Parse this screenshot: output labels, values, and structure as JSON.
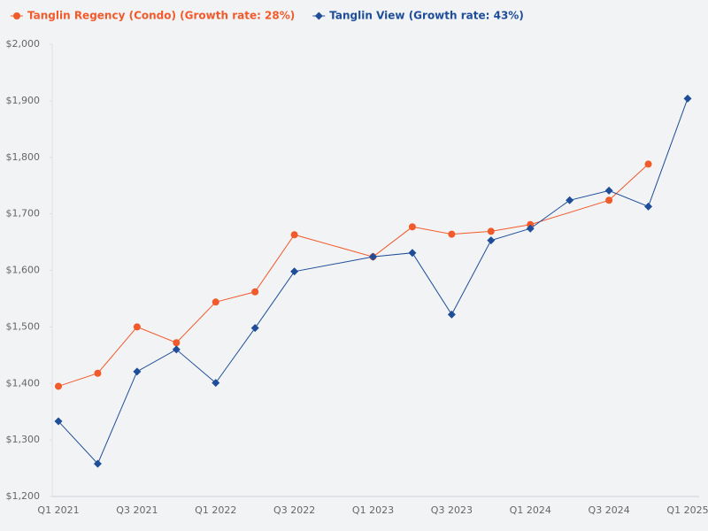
{
  "chart_data": {
    "type": "line",
    "categories": [
      "Q1 2021",
      null,
      "Q3 2021",
      null,
      "Q1 2022",
      null,
      "Q3 2022",
      null,
      "Q1 2023",
      null,
      "Q3 2023",
      null,
      "Q1 2024",
      null,
      "Q3 2024",
      null,
      "Q1 2025"
    ],
    "series": [
      {
        "name": "Tanglin Regency (Condo) (Growth rate: 28%)",
        "color": "#f15a2b",
        "marker": "circle",
        "values": [
          1395,
          1418,
          1500,
          1472,
          1544,
          1562,
          1663,
          null,
          1624,
          1677,
          1664,
          1669,
          1681,
          null,
          1724,
          1788,
          null
        ]
      },
      {
        "name": "Tanglin View (Growth rate: 43%)",
        "color": "#1f4e99",
        "marker": "diamond",
        "values": [
          1333,
          1258,
          1421,
          1460,
          1401,
          1498,
          1598,
          null,
          1624,
          1631,
          1522,
          1653,
          1674,
          1724,
          1741,
          1713,
          1904
        ]
      }
    ],
    "connect_gaps": true,
    "ylim": [
      1200,
      2000
    ],
    "yticks": [
      {
        "value": 1200,
        "label": "$1,200"
      },
      {
        "value": 1300,
        "label": "$1,300"
      },
      {
        "value": 1400,
        "label": "$1,400"
      },
      {
        "value": 1500,
        "label": "$1,500"
      },
      {
        "value": 1600,
        "label": "$1,600"
      },
      {
        "value": 1700,
        "label": "$1,700"
      },
      {
        "value": 1800,
        "label": "$1,800"
      },
      {
        "value": 1900,
        "label": "$1,900"
      },
      {
        "value": 2000,
        "label": "$2,000"
      }
    ],
    "legend": "top-left"
  }
}
